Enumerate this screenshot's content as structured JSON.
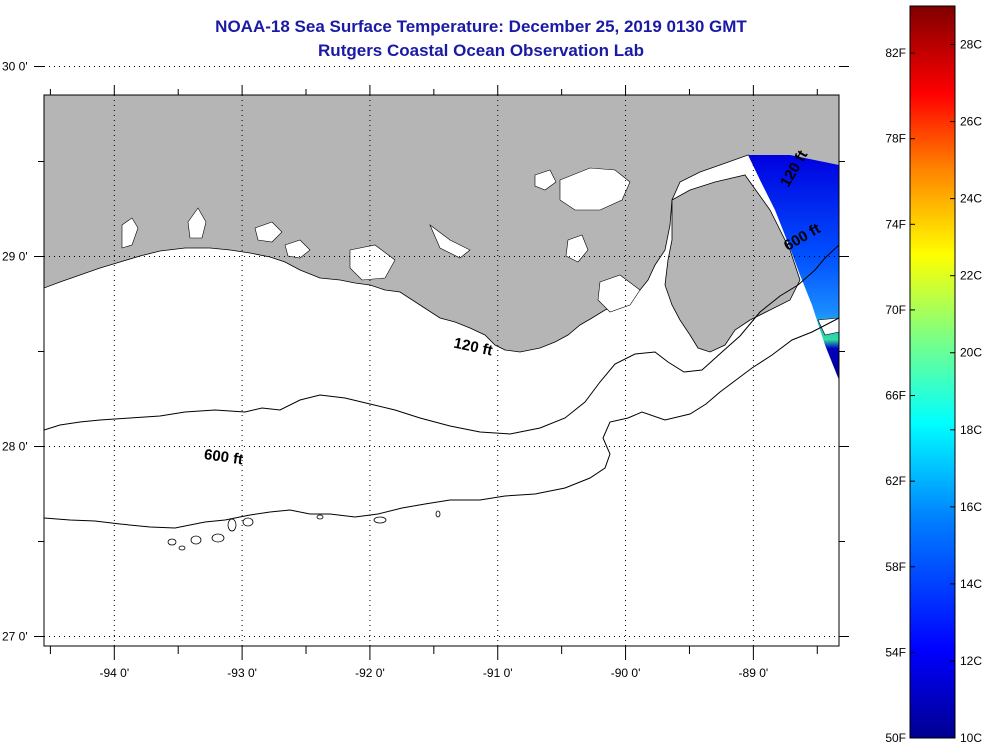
{
  "title": {
    "line1": "NOAA-18 Sea Surface Temperature:  December 25, 2019 0130 GMT",
    "line2": "Rutgers Coastal Ocean Observation Lab"
  },
  "map": {
    "lon_range": [
      -94.55,
      -88.33
    ],
    "lat_range": [
      26.95,
      29.85
    ],
    "lon_ticks": [
      -94,
      -93,
      -92,
      -91,
      -90,
      -89
    ],
    "lat_ticks": [
      27,
      28,
      29,
      30
    ],
    "lon_labels": [
      "-94 0'",
      "-93 0'",
      "-92 0'",
      "-91 0'",
      "-90 0'",
      "-89 0'"
    ],
    "lat_labels": [
      "27 0'",
      "28 0'",
      "29 0'",
      "30 0'"
    ],
    "land_color": "#b5b5b5",
    "grid": "dotted"
  },
  "contours": [
    {
      "depth_label": "120 ft",
      "label_lon": -91.2,
      "label_lat": 28.5
    },
    {
      "depth_label": "600 ft",
      "label_lon": -93.15,
      "label_lat": 27.92
    },
    {
      "depth_label": "120 ft",
      "label_lon": -88.65,
      "label_lat": 29.45
    },
    {
      "depth_label": "600 ft",
      "label_lon": -88.6,
      "label_lat": 29.08
    }
  ],
  "colorbar": {
    "colors": [
      "#00008f",
      "#0000ff",
      "#0080ff",
      "#00ffff",
      "#80ff80",
      "#ffff00",
      "#ff8000",
      "#ff0000",
      "#800000"
    ],
    "fahrenheit_labels": [
      "50F",
      "54F",
      "58F",
      "62F",
      "66F",
      "70F",
      "74F",
      "78F",
      "82F"
    ],
    "celsius_labels": [
      "10C",
      "12C",
      "14C",
      "16C",
      "18C",
      "20C",
      "22C",
      "24C",
      "26C",
      "28C"
    ],
    "range_c": [
      10,
      29
    ],
    "range_f": [
      50,
      84.2
    ]
  }
}
